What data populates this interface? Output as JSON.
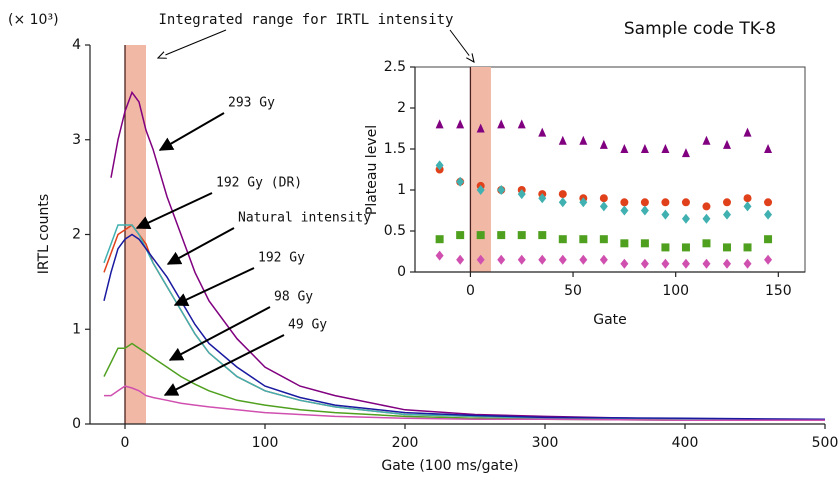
{
  "chart_data": [
    {
      "type": "line",
      "y_multiplier": "(× 10³)",
      "xlabel": "Gate (100 ms/gate)",
      "ylabel": "IRTL counts",
      "annotations": [
        "Integrated range for IRTL intensity",
        "Sample code TK-8"
      ],
      "highlight_range": [
        0,
        15
      ],
      "xlim": [
        -25,
        500
      ],
      "ylim": [
        0,
        4
      ],
      "xticks": [
        0,
        100,
        200,
        300,
        400,
        500
      ],
      "yticks": [
        0,
        1,
        2,
        3,
        4
      ],
      "x": [
        -15,
        -10,
        -5,
        0,
        5,
        10,
        15,
        20,
        30,
        40,
        50,
        60,
        80,
        100,
        125,
        150,
        200,
        250,
        300,
        400,
        500
      ],
      "series": [
        {
          "name": "293 Gy",
          "color": "#800080",
          "values": [
            null,
            2.6,
            3.0,
            3.3,
            3.5,
            3.4,
            3.1,
            2.9,
            2.4,
            2.0,
            1.6,
            1.3,
            0.9,
            0.6,
            0.4,
            0.3,
            0.15,
            0.1,
            0.08,
            0.05,
            0.05
          ]
        },
        {
          "name": "192 Gy (DR)",
          "color": "#e0401a",
          "values": [
            1.6,
            1.8,
            2.0,
            2.05,
            2.1,
            2.0,
            1.9,
            1.7,
            1.45,
            1.2,
            0.95,
            0.75,
            0.5,
            0.35,
            0.25,
            0.18,
            0.1,
            0.08,
            0.06,
            0.05,
            0.04
          ]
        },
        {
          "name": "Natural intensity",
          "color": "#40b0b0",
          "values": [
            1.7,
            1.9,
            2.1,
            2.1,
            2.1,
            2.0,
            1.85,
            1.7,
            1.45,
            1.2,
            0.95,
            0.75,
            0.5,
            0.35,
            0.25,
            0.18,
            0.1,
            0.08,
            0.06,
            0.05,
            0.04
          ]
        },
        {
          "name": "192 Gy",
          "color": "#1a1aa0",
          "values": [
            1.3,
            1.6,
            1.85,
            1.95,
            2.0,
            1.95,
            1.85,
            1.75,
            1.55,
            1.3,
            1.05,
            0.85,
            0.6,
            0.4,
            0.28,
            0.2,
            0.12,
            0.09,
            0.07,
            0.06,
            0.05
          ]
        },
        {
          "name": "98 Gy",
          "color": "#50a020",
          "values": [
            0.5,
            0.65,
            0.8,
            0.8,
            0.85,
            0.8,
            0.75,
            0.7,
            0.6,
            0.5,
            0.42,
            0.35,
            0.25,
            0.2,
            0.15,
            0.12,
            0.08,
            0.06,
            0.05,
            0.04,
            0.04
          ]
        },
        {
          "name": "49 Gy",
          "color": "#d050b0",
          "values": [
            0.3,
            0.3,
            0.35,
            0.4,
            0.38,
            0.35,
            0.3,
            0.28,
            0.25,
            0.22,
            0.2,
            0.18,
            0.15,
            0.12,
            0.1,
            0.08,
            0.06,
            0.05,
            0.05,
            0.04,
            0.04
          ]
        }
      ]
    },
    {
      "type": "scatter",
      "xlabel": "Gate",
      "ylabel": "Plateau level",
      "highlight_range": [
        0,
        10
      ],
      "frame": true,
      "xlim": [
        -27,
        163
      ],
      "ylim": [
        0,
        2.5
      ],
      "xticks": [
        0,
        50,
        100,
        150
      ],
      "yticks": [
        0,
        0.5,
        1,
        1.5,
        2,
        2.5
      ],
      "x": [
        -15,
        -5,
        5,
        15,
        25,
        35,
        45,
        55,
        65,
        75,
        85,
        95,
        105,
        115,
        125,
        135,
        145
      ],
      "series": [
        {
          "color": "#800080",
          "marker": "triangle",
          "values": [
            1.8,
            1.8,
            1.75,
            1.8,
            1.8,
            1.7,
            1.6,
            1.6,
            1.55,
            1.5,
            1.5,
            1.5,
            1.45,
            1.6,
            1.55,
            1.7,
            1.5
          ]
        },
        {
          "color": "#e0401a",
          "marker": "circle",
          "values": [
            1.25,
            1.1,
            1.05,
            1.0,
            1.0,
            0.95,
            0.95,
            0.9,
            0.9,
            0.85,
            0.85,
            0.85,
            0.85,
            0.8,
            0.85,
            0.9,
            0.85
          ]
        },
        {
          "color": "#40b0b0",
          "marker": "diamond",
          "values": [
            1.3,
            1.1,
            1.0,
            1.0,
            0.95,
            0.9,
            0.85,
            0.85,
            0.8,
            0.75,
            0.75,
            0.7,
            0.65,
            0.65,
            0.7,
            0.8,
            0.7
          ]
        },
        {
          "color": "#50a020",
          "marker": "square",
          "values": [
            0.4,
            0.45,
            0.45,
            0.45,
            0.45,
            0.45,
            0.4,
            0.4,
            0.4,
            0.35,
            0.35,
            0.3,
            0.3,
            0.35,
            0.3,
            0.3,
            0.4
          ]
        },
        {
          "color": "#d050b0",
          "marker": "diamond",
          "values": [
            0.2,
            0.15,
            0.15,
            0.15,
            0.15,
            0.15,
            0.15,
            0.15,
            0.15,
            0.1,
            0.1,
            0.1,
            0.1,
            0.1,
            0.1,
            0.1,
            0.15
          ]
        }
      ]
    }
  ]
}
